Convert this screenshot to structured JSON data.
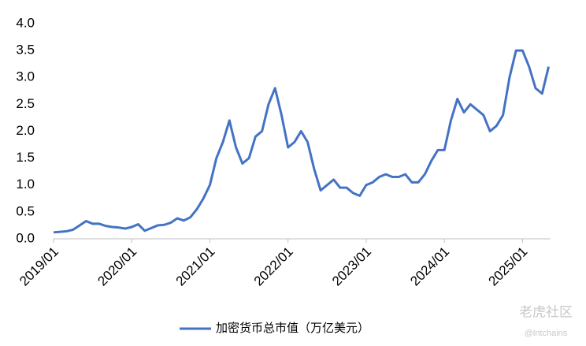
{
  "chart_data": {
    "type": "line",
    "categories": [
      "2019/01",
      null,
      null,
      null,
      null,
      null,
      null,
      null,
      null,
      null,
      null,
      null,
      "2020/01",
      null,
      null,
      null,
      null,
      null,
      null,
      null,
      null,
      null,
      null,
      null,
      "2021/01",
      null,
      null,
      null,
      null,
      null,
      null,
      null,
      null,
      null,
      null,
      null,
      "2022/01",
      null,
      null,
      null,
      null,
      null,
      null,
      null,
      null,
      null,
      null,
      null,
      "2023/01",
      null,
      null,
      null,
      null,
      null,
      null,
      null,
      null,
      null,
      null,
      null,
      "2024/01",
      null,
      null,
      null,
      null,
      null,
      null,
      null,
      null,
      null,
      null,
      null,
      "2025/01",
      null,
      null,
      null,
      null
    ],
    "series": [
      {
        "name": "加密货币总市值（万亿美元）",
        "color": "#4472c4",
        "values": [
          0.12,
          0.13,
          0.14,
          0.17,
          0.25,
          0.33,
          0.28,
          0.28,
          0.24,
          0.22,
          0.21,
          0.19,
          0.22,
          0.27,
          0.15,
          0.2,
          0.25,
          0.26,
          0.3,
          0.38,
          0.34,
          0.4,
          0.55,
          0.75,
          1.0,
          1.5,
          1.8,
          2.2,
          1.7,
          1.4,
          1.5,
          1.9,
          2.0,
          2.5,
          2.8,
          2.3,
          1.7,
          1.8,
          2.0,
          1.8,
          1.3,
          0.9,
          1.0,
          1.1,
          0.95,
          0.95,
          0.85,
          0.8,
          1.0,
          1.05,
          1.15,
          1.2,
          1.15,
          1.15,
          1.2,
          1.05,
          1.05,
          1.2,
          1.45,
          1.65,
          1.65,
          2.2,
          2.6,
          2.35,
          2.5,
          2.4,
          2.3,
          2.0,
          2.1,
          2.3,
          3.0,
          3.5,
          3.5,
          3.2,
          2.8,
          2.7,
          3.2
        ]
      }
    ],
    "ylim": [
      0,
      4
    ],
    "yticks": [
      {
        "value": 0,
        "label": "0.0"
      },
      0.5,
      {
        "value": 1,
        "label": "1.0"
      },
      1.5,
      {
        "value": 2,
        "label": "2.0"
      },
      2.5,
      {
        "value": 3,
        "label": "3.0"
      },
      3.5,
      {
        "value": 4,
        "label": "4.0"
      }
    ],
    "grid": false,
    "legend": "bottom",
    "watermark": [
      "老虎社区",
      "@lntchains"
    ]
  }
}
